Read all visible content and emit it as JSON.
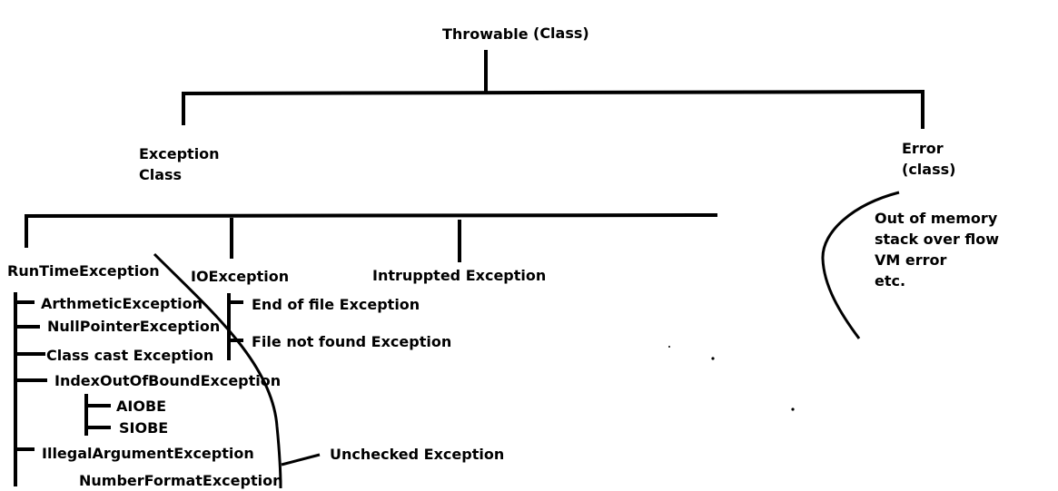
{
  "root": {
    "name": "Throwable",
    "kind": "(Class)"
  },
  "exception": {
    "line1": "Exception",
    "line2": "Class"
  },
  "error": {
    "line1": "Error",
    "line2": "(class)",
    "examples": [
      "Out of memory",
      "stack over flow",
      "VM error",
      "etc."
    ]
  },
  "runtime": {
    "title": "RunTimeException",
    "children": [
      "ArthmeticException",
      "NullPointerException",
      "Class cast Exception",
      "IndexOutOfBoundException"
    ],
    "index_children": [
      "AIOBE",
      "SIOBE"
    ],
    "illegal": "IllegalArgumentException",
    "number_format": "NumberFormatException"
  },
  "io": {
    "title": "IOException",
    "children": [
      "End of file Exception",
      "File not found Exception"
    ]
  },
  "interrupted": {
    "title": "Intruppted Exception"
  },
  "unchecked_label": "Unchecked Exception"
}
